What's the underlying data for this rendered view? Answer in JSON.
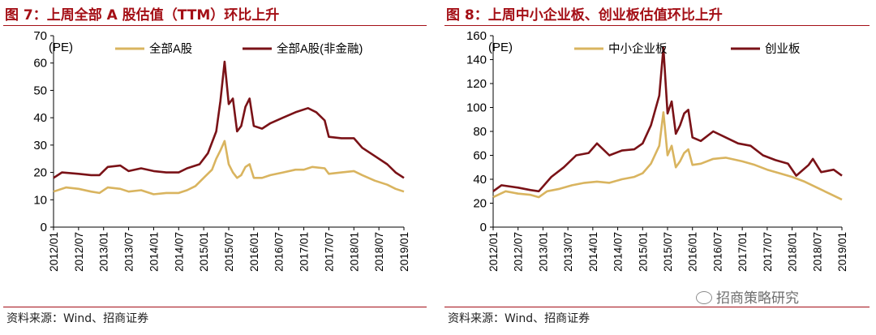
{
  "left_figure": {
    "title": "图 7：上周全部 A 股估值（TTM）环比上升",
    "source": "资料来源：Wind、招商证券"
  },
  "right_figure": {
    "title": "图 8：上周中小企业板、创业板估值环比上升",
    "source": "资料来源：Wind、招商证券"
  },
  "watermark": {
    "text": "招商策略研究",
    "icon": "wechat-icon"
  },
  "colors": {
    "series_gold": "#d9b45f",
    "series_maroon": "#7a1217",
    "title_red": "#a40f16"
  },
  "chart_data": [
    {
      "type": "line",
      "title": "",
      "ylabel": "(PE)",
      "xlabel": "",
      "ylim": [
        0,
        70
      ],
      "yticks": [
        0,
        10,
        20,
        30,
        40,
        50,
        60,
        70
      ],
      "xlim": [
        "2012/01",
        "2019/01"
      ],
      "x_tick_labels": [
        "2012/01",
        "2012/07",
        "2013/01",
        "2013/07",
        "2014/01",
        "2014/07",
        "2015/01",
        "2015/07",
        "2016/01",
        "2016/07",
        "2017/01",
        "2017/07",
        "2018/01",
        "2018/07",
        "2019/01"
      ],
      "grid": false,
      "legend": "top",
      "series": [
        {
          "name": "全部A股",
          "color": "#d9b45f",
          "points": [
            [
              "2012/01",
              13
            ],
            [
              "2012/04",
              14.5
            ],
            [
              "2012/07",
              14
            ],
            [
              "2012/10",
              13
            ],
            [
              "2012/12",
              12.5
            ],
            [
              "2013/02",
              14.5
            ],
            [
              "2013/05",
              14
            ],
            [
              "2013/07",
              13
            ],
            [
              "2013/10",
              13.5
            ],
            [
              "2014/01",
              12
            ],
            [
              "2014/04",
              12.5
            ],
            [
              "2014/07",
              12.5
            ],
            [
              "2014/09",
              13.5
            ],
            [
              "2014/11",
              15
            ],
            [
              "2015/01",
              18
            ],
            [
              "2015/03",
              21
            ],
            [
              "2015/04",
              25
            ],
            [
              "2015/05",
              28
            ],
            [
              "2015/06",
              31.5
            ],
            [
              "2015/07",
              23
            ],
            [
              "2015/08",
              20
            ],
            [
              "2015/09",
              18
            ],
            [
              "2015/10",
              19
            ],
            [
              "2015/11",
              22
            ],
            [
              "2015/12",
              23
            ],
            [
              "2016/01",
              18
            ],
            [
              "2016/03",
              18
            ],
            [
              "2016/05",
              19
            ],
            [
              "2016/08",
              20
            ],
            [
              "2016/11",
              21
            ],
            [
              "2017/01",
              21
            ],
            [
              "2017/03",
              22
            ],
            [
              "2017/06",
              21.5
            ],
            [
              "2017/07",
              19.5
            ],
            [
              "2017/10",
              20
            ],
            [
              "2018/01",
              20.5
            ],
            [
              "2018/03",
              19
            ],
            [
              "2018/06",
              17
            ],
            [
              "2018/09",
              15.5
            ],
            [
              "2018/11",
              14
            ],
            [
              "2019/01",
              13
            ]
          ]
        },
        {
          "name": "全部A股(非金融)",
          "color": "#7a1217",
          "points": [
            [
              "2012/01",
              18
            ],
            [
              "2012/03",
              20
            ],
            [
              "2012/07",
              19.5
            ],
            [
              "2012/10",
              19
            ],
            [
              "2012/12",
              19
            ],
            [
              "2013/02",
              22
            ],
            [
              "2013/05",
              22.5
            ],
            [
              "2013/07",
              20.5
            ],
            [
              "2013/10",
              21.5
            ],
            [
              "2014/01",
              20.5
            ],
            [
              "2014/04",
              20
            ],
            [
              "2014/07",
              20
            ],
            [
              "2014/09",
              21.5
            ],
            [
              "2014/12",
              23
            ],
            [
              "2015/02",
              27
            ],
            [
              "2015/04",
              35
            ],
            [
              "2015/05",
              46
            ],
            [
              "2015/06",
              60.5
            ],
            [
              "2015/07",
              45
            ],
            [
              "2015/08",
              47
            ],
            [
              "2015/09",
              35
            ],
            [
              "2015/10",
              37
            ],
            [
              "2015/11",
              44
            ],
            [
              "2015/12",
              47
            ],
            [
              "2016/01",
              37
            ],
            [
              "2016/03",
              36
            ],
            [
              "2016/05",
              38
            ],
            [
              "2016/08",
              40
            ],
            [
              "2016/11",
              42
            ],
            [
              "2017/02",
              43.5
            ],
            [
              "2017/04",
              42
            ],
            [
              "2017/06",
              39
            ],
            [
              "2017/07",
              33
            ],
            [
              "2017/10",
              32.5
            ],
            [
              "2018/01",
              32.5
            ],
            [
              "2018/03",
              29
            ],
            [
              "2018/06",
              26
            ],
            [
              "2018/09",
              23
            ],
            [
              "2018/11",
              20
            ],
            [
              "2019/01",
              18
            ]
          ]
        }
      ]
    },
    {
      "type": "line",
      "title": "",
      "ylabel": "(PE)",
      "xlabel": "",
      "ylim": [
        0,
        160
      ],
      "yticks": [
        0,
        20,
        40,
        60,
        80,
        100,
        120,
        140,
        160
      ],
      "xlim": [
        "2012/01",
        "2019/01"
      ],
      "x_tick_labels": [
        "2012/01",
        "2012/07",
        "2013/01",
        "2013/07",
        "2014/01",
        "2014/07",
        "2015/01",
        "2015/07",
        "2016/01",
        "2016/07",
        "2017/01",
        "2017/07",
        "2018/01",
        "2018/07",
        "2019/01"
      ],
      "grid": false,
      "legend": "top",
      "series": [
        {
          "name": "中小企业板",
          "color": "#d9b45f",
          "points": [
            [
              "2012/01",
              25
            ],
            [
              "2012/04",
              30
            ],
            [
              "2012/07",
              28
            ],
            [
              "2012/10",
              27
            ],
            [
              "2012/12",
              25
            ],
            [
              "2013/02",
              30
            ],
            [
              "2013/05",
              32
            ],
            [
              "2013/08",
              35
            ],
            [
              "2013/11",
              37
            ],
            [
              "2014/02",
              38
            ],
            [
              "2014/05",
              37
            ],
            [
              "2014/08",
              40
            ],
            [
              "2014/11",
              42
            ],
            [
              "2015/01",
              45
            ],
            [
              "2015/03",
              53
            ],
            [
              "2015/05",
              68
            ],
            [
              "2015/06",
              96
            ],
            [
              "2015/07",
              60
            ],
            [
              "2015/08",
              68
            ],
            [
              "2015/09",
              50
            ],
            [
              "2015/10",
              55
            ],
            [
              "2015/11",
              62
            ],
            [
              "2015/12",
              65
            ],
            [
              "2016/01",
              52
            ],
            [
              "2016/03",
              53
            ],
            [
              "2016/06",
              57
            ],
            [
              "2016/09",
              58
            ],
            [
              "2017/01",
              55
            ],
            [
              "2017/04",
              52
            ],
            [
              "2017/07",
              48
            ],
            [
              "2017/10",
              45
            ],
            [
              "2018/01",
              42
            ],
            [
              "2018/04",
              38
            ],
            [
              "2018/07",
              33
            ],
            [
              "2018/10",
              28
            ],
            [
              "2019/01",
              23
            ]
          ]
        },
        {
          "name": "创业板",
          "color": "#7a1217",
          "points": [
            [
              "2012/01",
              30
            ],
            [
              "2012/03",
              35
            ],
            [
              "2012/07",
              33
            ],
            [
              "2012/10",
              31
            ],
            [
              "2012/12",
              30
            ],
            [
              "2013/03",
              42
            ],
            [
              "2013/06",
              50
            ],
            [
              "2013/09",
              60
            ],
            [
              "2013/12",
              62
            ],
            [
              "2014/02",
              70
            ],
            [
              "2014/05",
              60
            ],
            [
              "2014/08",
              64
            ],
            [
              "2014/11",
              65
            ],
            [
              "2015/01",
              70
            ],
            [
              "2015/03",
              85
            ],
            [
              "2015/05",
              110
            ],
            [
              "2015/06",
              150
            ],
            [
              "2015/07",
              95
            ],
            [
              "2015/08",
              105
            ],
            [
              "2015/09",
              78
            ],
            [
              "2015/10",
              85
            ],
            [
              "2015/11",
              95
            ],
            [
              "2015/12",
              98
            ],
            [
              "2016/01",
              75
            ],
            [
              "2016/03",
              72
            ],
            [
              "2016/06",
              80
            ],
            [
              "2016/09",
              75
            ],
            [
              "2016/12",
              70
            ],
            [
              "2017/03",
              68
            ],
            [
              "2017/06",
              60
            ],
            [
              "2017/09",
              56
            ],
            [
              "2017/12",
              53
            ],
            [
              "2018/02",
              43
            ],
            [
              "2018/05",
              52
            ],
            [
              "2018/06",
              57
            ],
            [
              "2018/08",
              46
            ],
            [
              "2018/11",
              48
            ],
            [
              "2019/01",
              43
            ]
          ]
        }
      ]
    }
  ]
}
